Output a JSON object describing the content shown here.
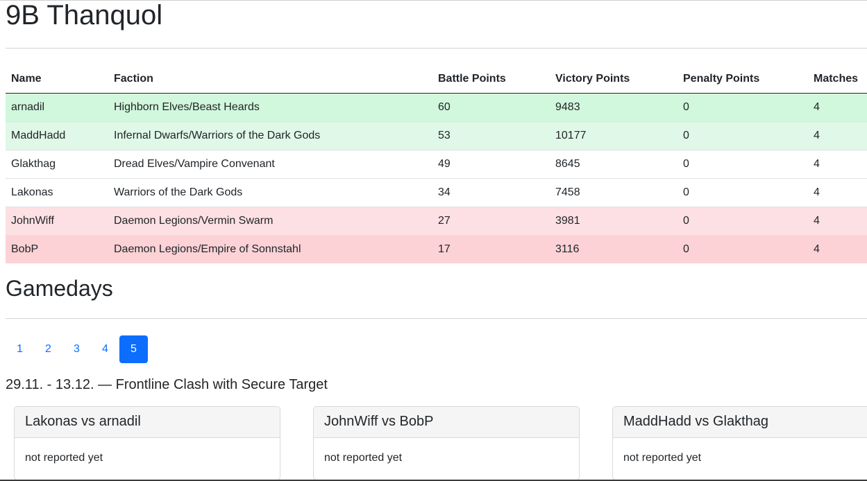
{
  "page_title": "9B Thanquol",
  "standings": {
    "headers": [
      "Name",
      "Faction",
      "Battle Points",
      "Victory Points",
      "Penalty Points",
      "Matches"
    ],
    "rows": [
      [
        "arnadil",
        "Highborn Elves/Beast Heards",
        "60",
        "9483",
        "0",
        "4"
      ],
      [
        "MaddHadd",
        "Infernal Dwarfs/Warriors of the Dark Gods",
        "53",
        "10177",
        "0",
        "4"
      ],
      [
        "Glakthag",
        "Dread Elves/Vampire Convenant",
        "49",
        "8645",
        "0",
        "4"
      ],
      [
        "Lakonas",
        "Warriors of the Dark Gods",
        "34",
        "7458",
        "0",
        "4"
      ],
      [
        "JohnWiff",
        "Daemon Legions/Vermin Swarm",
        "27",
        "3981",
        "0",
        "4"
      ],
      [
        "BobP",
        "Daemon Legions/Empire of Sonnstahl",
        "17",
        "3116",
        "0",
        "4"
      ]
    ],
    "row_colors": [
      "#d1f7dc",
      "#e0f8e7",
      "#ffffff",
      "#ffffff",
      "#fde0e3",
      "#fcd2d6"
    ]
  },
  "gamedays": {
    "title": "Gamedays",
    "pages": [
      "1",
      "2",
      "3",
      "4",
      "5"
    ],
    "active_page": "5",
    "round_info": "29.11. - 13.12. — Frontline Clash with Secure Target",
    "matches": [
      {
        "title": "Lakonas vs arnadil",
        "status": "not reported yet"
      },
      {
        "title": "JohnWiff vs BobP",
        "status": "not reported yet"
      },
      {
        "title": "MaddHadd vs Glakthag",
        "status": "not reported yet"
      }
    ]
  },
  "colors": {
    "accent": "#0d6efd",
    "win": "#d1f7dc",
    "loss": "#fcd2d6"
  }
}
